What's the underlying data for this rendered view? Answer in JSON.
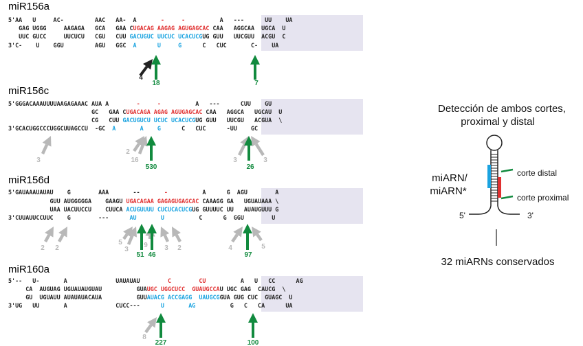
{
  "colors": {
    "mirna": "#e03030",
    "star": "#1aa3e0",
    "green": "#118a3e",
    "gray": "#b8b8b8",
    "black": "#222222",
    "shade": "#e6e4f0"
  },
  "panels": [
    {
      "id": "mir156a",
      "title": "miR156a",
      "rows": [
        [
          {
            "t": "5'AA   U     AC-         AAC   AA-  A       "
          },
          {
            "t": "-",
            "c": "r"
          },
          {
            "t": "     "
          },
          {
            "t": "-",
            "c": "r"
          },
          {
            "t": "          A   ---      UU    UA"
          }
        ],
        [
          {
            "t": "   GAG UGGG     AAGAGA   GCA   GAA C"
          },
          {
            "t": "UGACAG AAGAG AGUGAGCAC",
            "c": "r"
          },
          {
            "t": " CAA   AGGCAA  UGCA  U"
          }
        ],
        [
          {
            "t": "   UUC GUCC     UUCUCU   CGU   CUU "
          },
          {
            "t": "GACUGUC UUCUC UCACUCG",
            "c": "b"
          },
          {
            "t": "UG GUU   UUCGUU  ACGU  C"
          }
        ],
        [
          {
            "t": "3'C-    U    GGU         AGU   GGC  "
          },
          {
            "t": "A",
            "c": "b"
          },
          {
            "t": "      "
          },
          {
            "t": "U",
            "c": "b"
          },
          {
            "t": "     "
          },
          {
            "t": "G",
            "c": "b"
          },
          {
            "t": "      C   CUC       C-    UA"
          }
        ]
      ],
      "arrows": [
        {
          "color": "black",
          "count": "4"
        },
        {
          "color": "green",
          "count": "18"
        },
        {
          "color": "green",
          "count": "7"
        }
      ]
    },
    {
      "id": "mir156c",
      "title": "miR156c",
      "rows": [
        [
          {
            "t": "5'GGGACAAAUUUUAAGAGAAAC AUA A        "
          },
          {
            "t": "-",
            "c": "r"
          },
          {
            "t": "     "
          },
          {
            "t": "-",
            "c": "r"
          },
          {
            "t": "          A   ---      CUU    GU"
          }
        ],
        [
          {
            "t": "                        GC   GAA C"
          },
          {
            "t": "UGACAGA AGAG AGUGAGCAC",
            "c": "r"
          },
          {
            "t": " CAA   AGGCA   UGCAU  U"
          }
        ],
        [
          {
            "t": "                        CG   CUU "
          },
          {
            "t": "GACUGUCU UCUC UCACUCG",
            "c": "b"
          },
          {
            "t": "UG GUU   UUCGU   ACGUA  \\"
          }
        ],
        [
          {
            "t": "3'GCACUGGCCCUGGCUUAGCCU  -GC  "
          },
          {
            "t": "A",
            "c": "b"
          },
          {
            "t": "       "
          },
          {
            "t": "A",
            "c": "b"
          },
          {
            "t": "    "
          },
          {
            "t": "G",
            "c": "b"
          },
          {
            "t": "      C   CUC      -UU    GC"
          }
        ]
      ],
      "arrows": [
        {
          "color": "gray",
          "count": "3"
        },
        {
          "color": "gray",
          "count": "2"
        },
        {
          "color": "gray",
          "count": "16"
        },
        {
          "color": "green",
          "count": "530"
        },
        {
          "color": "gray",
          "count": "3"
        },
        {
          "color": "green",
          "count": "26"
        },
        {
          "color": "gray",
          "count": "3"
        }
      ]
    },
    {
      "id": "mir156d",
      "title": "miR156d",
      "rows": [
        [
          {
            "t": "5'GAUAAAUAUAU    G        AAA       --       "
          },
          {
            "t": "-",
            "c": "r"
          },
          {
            "t": "          A      G  AGU        A"
          }
        ],
        [
          {
            "t": "            GUU AUGGGGGA    GAAGU "
          },
          {
            "t": "UGACAGAA GAGAGUGAGCAC",
            "c": "r"
          },
          {
            "t": " CAAAGG GA   UGUAUAAA \\"
          }
        ],
        [
          {
            "t": "            UAA UACUUCCU    CUUCA "
          },
          {
            "t": "ACUGUUUU CUCUCACUCG",
            "c": "b"
          },
          {
            "t": "UG GUUUUC UU   AUAUGUUU G"
          }
        ],
        [
          {
            "t": "3'CUUAUUCCUUC    G        ---      "
          },
          {
            "t": "AU",
            "c": "b"
          },
          {
            "t": "       "
          },
          {
            "t": "U",
            "c": "b"
          },
          {
            "t": "          C      G  GGU        U"
          }
        ]
      ],
      "arrows": [
        {
          "color": "gray",
          "count": "2"
        },
        {
          "color": "gray",
          "count": "2"
        },
        {
          "color": "gray",
          "count": "5"
        },
        {
          "color": "gray",
          "count": "3"
        },
        {
          "color": "gray",
          "count": "9"
        },
        {
          "color": "green",
          "count": "51"
        },
        {
          "color": "green",
          "count": "46"
        },
        {
          "color": "gray",
          "count": "3"
        },
        {
          "color": "gray",
          "count": "2"
        },
        {
          "color": "gray",
          "count": "4"
        },
        {
          "color": "green",
          "count": "97"
        },
        {
          "color": "gray",
          "count": "5"
        }
      ]
    },
    {
      "id": "mir160a",
      "title": "miR160a",
      "rows": [
        [
          {
            "t": "5'--   U-       A              UAUAUAU        "
          },
          {
            "t": "C",
            "c": "r"
          },
          {
            "t": "        "
          },
          {
            "t": "CU",
            "c": "r"
          },
          {
            "t": "          A   U   CC      AG"
          }
        ],
        [
          {
            "t": "     CA  AUGUAG UGUAUAUGUAU          GUA"
          },
          {
            "t": "UGC UGGCUCC  GUAUGCCA",
            "c": "r"
          },
          {
            "t": "U UGC GAG  CAUCG  \\"
          }
        ],
        [
          {
            "t": "     GU  UGUAUU AUAUAUACAUA          GUU"
          },
          {
            "t": "AUACG ACCGAGG  UAUGCG",
            "c": "b"
          },
          {
            "t": "GUA GUG CUC  GUAGC  U"
          }
        ],
        [
          {
            "t": "3'UG   UU       A              CUCC---      "
          },
          {
            "t": "U",
            "c": "b"
          },
          {
            "t": "       "
          },
          {
            "t": "AG",
            "c": "b"
          },
          {
            "t": "          G   C   CA      UA"
          }
        ]
      ],
      "arrows": [
        {
          "color": "gray",
          "count": "8"
        },
        {
          "color": "green",
          "count": "227"
        },
        {
          "color": "green",
          "count": "100"
        }
      ]
    }
  ],
  "legend": {
    "heading_line1": "Detección de ambos cortes,",
    "heading_line2": "proximal y distal",
    "mirna_label_line1": "miARN/",
    "mirna_label_line2": "miARN*",
    "distal_label": "corte distal",
    "proximal_label": "corte proximal",
    "five_prime": "5'",
    "three_prime": "3'",
    "footer": "32 miARNs conservados"
  }
}
